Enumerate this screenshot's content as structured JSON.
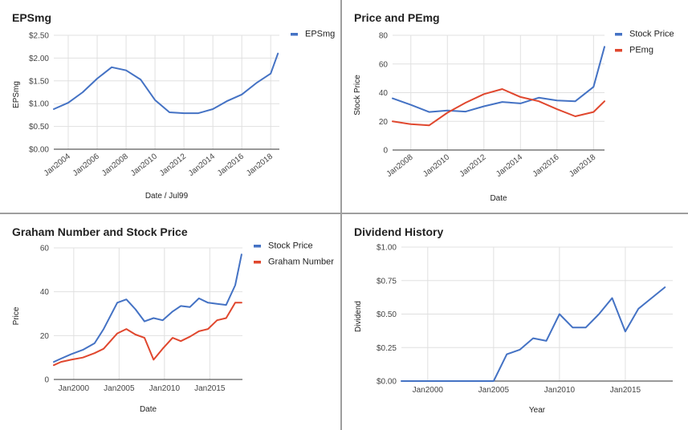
{
  "colors": {
    "blue": "#4472c4",
    "red": "#e0472e",
    "grid": "#e0e0e0",
    "axis": "#333333"
  },
  "chart_data": [
    {
      "type": "line",
      "title": "EPSmg",
      "xlabel": "Date / Jul99",
      "ylabel": "EPSmg",
      "x_ticks": [
        "Jan2004",
        "Jan2006",
        "Jan2008",
        "Jan2010",
        "Jan2012",
        "Jan2014",
        "Jan2016",
        "Jan2018"
      ],
      "y_ticks": [
        "$0.00",
        "$0.50",
        "$1.00",
        "$1.50",
        "$2.00",
        "$2.50"
      ],
      "xlim": [
        2003.0,
        2018.6
      ],
      "ylim": [
        0,
        2.5
      ],
      "legend_position": "top-right",
      "series": [
        {
          "name": "EPSmg",
          "color": "#4472c4",
          "x": [
            2003.0,
            2004.0,
            2005.0,
            2006.0,
            2007.0,
            2008.0,
            2009.0,
            2010.0,
            2011.0,
            2012.0,
            2013.0,
            2014.0,
            2015.0,
            2016.0,
            2017.0,
            2018.0,
            2018.5
          ],
          "y": [
            0.88,
            1.02,
            1.25,
            1.55,
            1.8,
            1.73,
            1.53,
            1.08,
            0.81,
            0.79,
            0.79,
            0.88,
            1.06,
            1.2,
            1.45,
            1.66,
            2.1
          ]
        }
      ]
    },
    {
      "type": "line",
      "title": "Price and PEmg",
      "xlabel": "Date",
      "ylabel": "Stock Price",
      "x_ticks": [
        "Jan2008",
        "Jan2010",
        "Jan2012",
        "Jan2014",
        "Jan2016",
        "Jan2018"
      ],
      "y_ticks": [
        "0",
        "20",
        "40",
        "60",
        "80"
      ],
      "xlim": [
        2007.0,
        2018.6
      ],
      "ylim": [
        0,
        80
      ],
      "legend_position": "top-right",
      "series": [
        {
          "name": "Stock Price",
          "color": "#4472c4",
          "x": [
            2007.0,
            2008.0,
            2009.0,
            2010.0,
            2011.0,
            2012.0,
            2013.0,
            2014.0,
            2015.0,
            2016.0,
            2017.0,
            2018.0,
            2018.6
          ],
          "y": [
            36,
            31.5,
            26.5,
            27.5,
            26.8,
            30.5,
            33.5,
            32.5,
            36.5,
            34.5,
            34,
            44,
            72
          ]
        },
        {
          "name": "PEmg",
          "color": "#e0472e",
          "x": [
            2007.0,
            2008.0,
            2009.0,
            2010.0,
            2011.0,
            2012.0,
            2013.0,
            2014.0,
            2015.0,
            2016.0,
            2017.0,
            2018.0,
            2018.6
          ],
          "y": [
            20,
            18,
            17.2,
            26,
            33,
            39,
            42.5,
            37,
            34,
            28.5,
            23.5,
            26.5,
            34
          ]
        }
      ]
    },
    {
      "type": "line",
      "title": "Graham Number and Stock Price",
      "xlabel": "Date",
      "ylabel": "Price",
      "x_ticks": [
        "Jan2000",
        "Jan2005",
        "Jan2010",
        "Jan2015"
      ],
      "y_ticks": [
        "0",
        "20",
        "40",
        "60"
      ],
      "xlim": [
        1997.8,
        2018.6
      ],
      "ylim": [
        0,
        60
      ],
      "legend_position": "top-right",
      "series": [
        {
          "name": "Stock Price",
          "color": "#4472c4",
          "x": [
            1997.8,
            1998.6,
            1999.7,
            2001.0,
            2002.3,
            2003.3,
            2004.8,
            2005.8,
            2006.8,
            2007.8,
            2008.8,
            2009.8,
            2010.9,
            2011.8,
            2012.8,
            2013.8,
            2014.8,
            2015.8,
            2016.8,
            2017.8,
            2018.5
          ],
          "y": [
            8,
            9.5,
            11.5,
            13.5,
            16.5,
            23,
            35,
            36.5,
            32,
            26.5,
            28,
            27,
            31,
            33.5,
            33,
            37,
            35,
            34.5,
            34,
            43,
            57
          ]
        },
        {
          "name": "Graham Number",
          "color": "#e0472e",
          "x": [
            1997.8,
            1998.6,
            1999.7,
            2001.0,
            2002.3,
            2003.3,
            2004.8,
            2005.8,
            2006.8,
            2007.8,
            2008.8,
            2009.8,
            2010.9,
            2011.8,
            2012.8,
            2013.8,
            2014.8,
            2015.8,
            2016.8,
            2017.8,
            2018.5
          ],
          "y": [
            6.5,
            8,
            9,
            10,
            12,
            14,
            21,
            23,
            20.5,
            19,
            9,
            14,
            19,
            17.5,
            19.5,
            22,
            23,
            27,
            28,
            35,
            35
          ]
        }
      ]
    },
    {
      "type": "line",
      "title": "Dividend History",
      "xlabel": "Year",
      "ylabel": "Dividend",
      "x_ticks": [
        "Jan2000",
        "Jan2005",
        "Jan2010",
        "Jan2015"
      ],
      "y_ticks": [
        "$0.00",
        "$0.25",
        "$0.50",
        "$0.75",
        "$1.00"
      ],
      "xlim": [
        1998.0,
        2018.6
      ],
      "ylim": [
        0,
        1.0
      ],
      "series": [
        {
          "name": "Dividend",
          "color": "#4472c4",
          "x": [
            1998.0,
            2004.0,
            2005.0,
            2006.0,
            2007.0,
            2008.0,
            2009.0,
            2010.0,
            2011.0,
            2012.0,
            2013.0,
            2014.0,
            2015.0,
            2016.0,
            2017.0,
            2018.0
          ],
          "y": [
            0,
            0,
            0,
            0.2,
            0.235,
            0.32,
            0.3,
            0.5,
            0.4,
            0.4,
            0.5,
            0.62,
            0.37,
            0.54,
            0.62,
            0.7
          ]
        }
      ]
    }
  ]
}
